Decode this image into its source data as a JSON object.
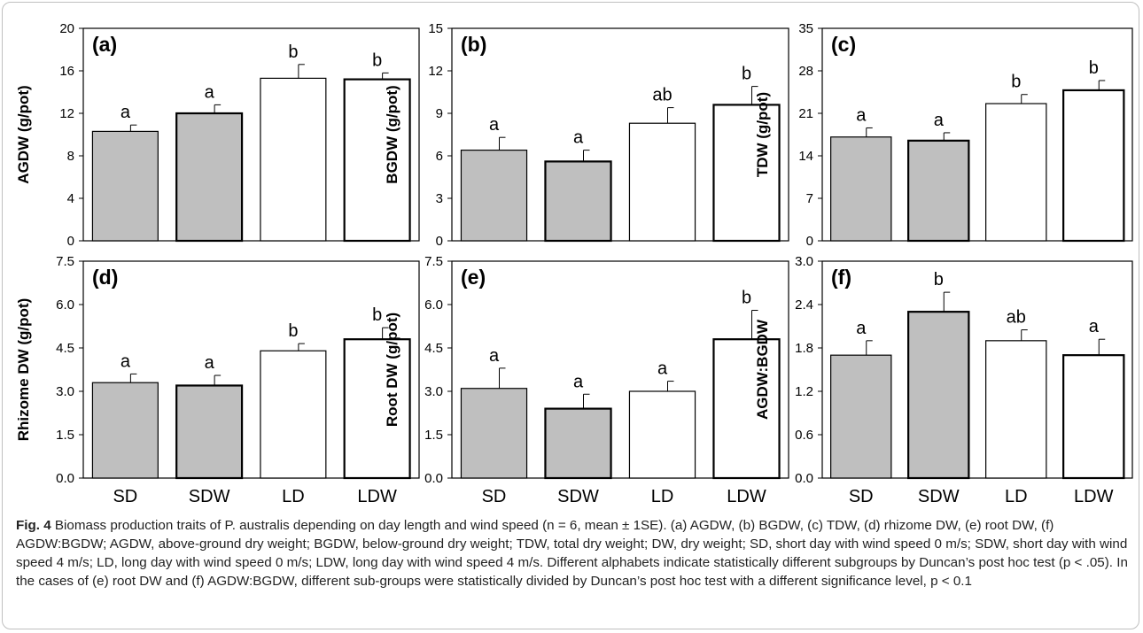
{
  "chart_data": [
    {
      "type": "bar",
      "panel_label": "(a)",
      "categories": [
        "SD",
        "SDW",
        "LD",
        "LDW"
      ],
      "values": [
        10.3,
        12.0,
        15.3,
        15.2
      ],
      "errors": [
        0.6,
        0.8,
        1.3,
        0.6
      ],
      "significance_letters": [
        "a",
        "a",
        "b",
        "b"
      ],
      "ylabel": "AGDW (g/pot)",
      "ylim": [
        0,
        20
      ],
      "yticks": [
        "0",
        "4",
        "8",
        "12",
        "16",
        "20"
      ],
      "bar_fills": [
        "#bfbfbf",
        "#bfbfbf",
        "#ffffff",
        "#ffffff"
      ],
      "show_category_labels": false
    },
    {
      "type": "bar",
      "panel_label": "(b)",
      "categories": [
        "SD",
        "SDW",
        "LD",
        "LDW"
      ],
      "values": [
        6.4,
        5.6,
        8.3,
        9.6
      ],
      "errors": [
        0.9,
        0.8,
        1.1,
        1.3
      ],
      "significance_letters": [
        "a",
        "a",
        "ab",
        "b"
      ],
      "ylabel": "BGDW (g/pot)",
      "ylim": [
        0,
        15
      ],
      "yticks": [
        "0",
        "3",
        "6",
        "9",
        "12",
        "15"
      ],
      "bar_fills": [
        "#bfbfbf",
        "#bfbfbf",
        "#ffffff",
        "#ffffff"
      ],
      "show_category_labels": false
    },
    {
      "type": "bar",
      "panel_label": "(c)",
      "categories": [
        "SD",
        "SDW",
        "LD",
        "LDW"
      ],
      "values": [
        17.1,
        16.5,
        22.6,
        24.8
      ],
      "errors": [
        1.5,
        1.3,
        1.5,
        1.6
      ],
      "significance_letters": [
        "a",
        "a",
        "b",
        "b"
      ],
      "ylabel": "TDW (g/pot)",
      "ylim": [
        0,
        35
      ],
      "yticks": [
        "0",
        "7",
        "14",
        "21",
        "28",
        "35"
      ],
      "bar_fills": [
        "#bfbfbf",
        "#bfbfbf",
        "#ffffff",
        "#ffffff"
      ],
      "show_category_labels": false
    },
    {
      "type": "bar",
      "panel_label": "(d)",
      "categories": [
        "SD",
        "SDW",
        "LD",
        "LDW"
      ],
      "values": [
        3.3,
        3.2,
        4.4,
        4.8
      ],
      "errors": [
        0.3,
        0.35,
        0.25,
        0.4
      ],
      "significance_letters": [
        "a",
        "a",
        "b",
        "b"
      ],
      "ylabel": "Rhizome DW (g/pot)",
      "ylim": [
        0,
        7.5
      ],
      "yticks": [
        "0.0",
        "1.5",
        "3.0",
        "4.5",
        "6.0",
        "7.5"
      ],
      "bar_fills": [
        "#bfbfbf",
        "#bfbfbf",
        "#ffffff",
        "#ffffff"
      ],
      "show_category_labels": true
    },
    {
      "type": "bar",
      "panel_label": "(e)",
      "categories": [
        "SD",
        "SDW",
        "LD",
        "LDW"
      ],
      "values": [
        3.1,
        2.4,
        3.0,
        4.8
      ],
      "errors": [
        0.7,
        0.5,
        0.35,
        1.0
      ],
      "significance_letters": [
        "a",
        "a",
        "a",
        "b"
      ],
      "ylabel": "Root DW (g/pot)",
      "ylim": [
        0,
        7.5
      ],
      "yticks": [
        "0.0",
        "1.5",
        "3.0",
        "4.5",
        "6.0",
        "7.5"
      ],
      "bar_fills": [
        "#bfbfbf",
        "#bfbfbf",
        "#ffffff",
        "#ffffff"
      ],
      "show_category_labels": true
    },
    {
      "type": "bar",
      "panel_label": "(f)",
      "categories": [
        "SD",
        "SDW",
        "LD",
        "LDW"
      ],
      "values": [
        1.7,
        2.3,
        1.9,
        1.7
      ],
      "errors": [
        0.2,
        0.27,
        0.15,
        0.22
      ],
      "significance_letters": [
        "a",
        "b",
        "ab",
        "a"
      ],
      "ylabel": "AGDW:BGDW",
      "ylim": [
        0,
        3.0
      ],
      "yticks": [
        "0.0",
        "0.6",
        "1.2",
        "1.8",
        "2.4",
        "3.0"
      ],
      "bar_fills": [
        "#bfbfbf",
        "#bfbfbf",
        "#ffffff",
        "#ffffff"
      ],
      "show_category_labels": true
    }
  ],
  "caption": {
    "fig_label": "Fig. 4",
    "text": "Biomass production traits of P. australis depending on day length and wind speed (n = 6, mean ± 1SE). (a) AGDW, (b) BGDW, (c) TDW, (d) rhizome DW, (e) root DW, (f) AGDW:BGDW; AGDW, above-ground dry weight; BGDW, below-ground dry weight; TDW, total dry weight; DW, dry weight; SD, short day with wind speed 0 m/s; SDW, short day with wind speed 4 m/s; LD, long day with wind speed 0 m/s; LDW, long day with wind speed 4 m/s. Different alphabets indicate statistically different subgroups by Duncan’s post hoc test (p < .05). In the cases of (e) root DW and (f) AGDW:BGDW, different sub-groups were statistically divided by Duncan’s post hoc test with a different significance level, p < 0.1"
  }
}
